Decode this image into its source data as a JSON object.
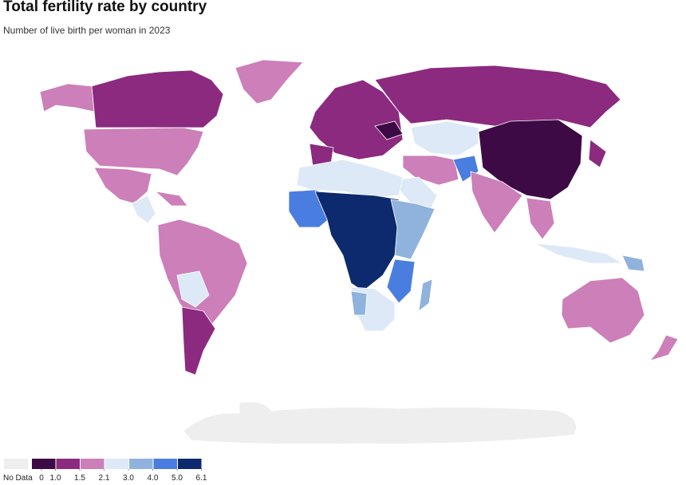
{
  "title": "Total fertility rate by country",
  "subtitle": "Number of live birth per woman in 2023",
  "legend": {
    "no_data_label": "No Data",
    "no_data_color": "#eeeeee",
    "colors": [
      "#3d0a45",
      "#8b2a7f",
      "#cc7fb8",
      "#dde9f7",
      "#8fb3dc",
      "#4a7de0",
      "#0e2a6e"
    ],
    "ticks": [
      0,
      {
        "value": 1,
        "label": "1.0"
      },
      1.5,
      2.1,
      {
        "value": 3,
        "label": "3.0"
      },
      {
        "value": 4,
        "label": "4.0"
      },
      {
        "value": 5,
        "label": "5.0"
      },
      6.1
    ]
  }
}
